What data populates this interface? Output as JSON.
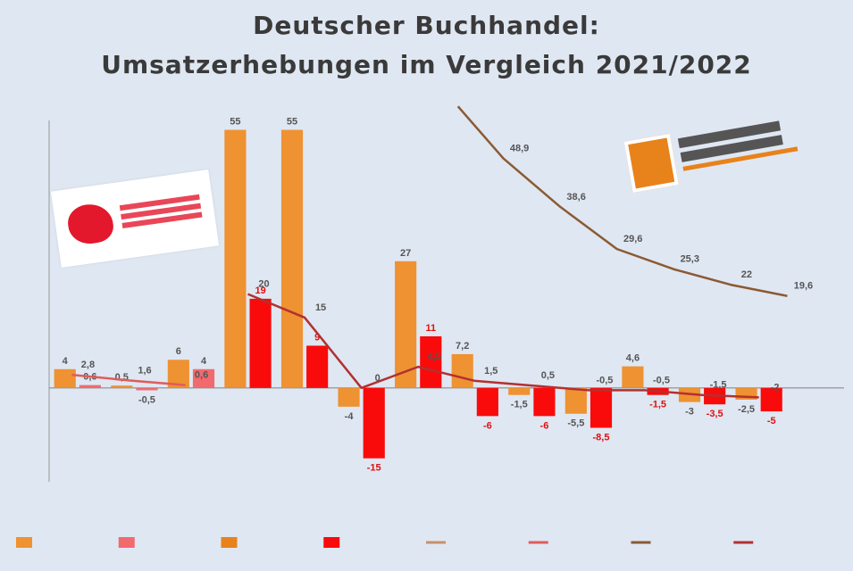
{
  "header": {
    "title_line1": "Deutscher Buchhandel:",
    "title_line2": "Umsatzerhebungen im Vergleich 2021/2022",
    "subtitle": ""
  },
  "source_note": "",
  "logos": {
    "left": "logo-left",
    "right": "logo-right"
  },
  "chart_data": {
    "type": "bar",
    "title": "Deutscher Buchhandel: Umsatzerhebungen im Vergleich 2021/2022",
    "xlabel": "",
    "ylabel": "",
    "ylim": [
      -20,
      57
    ],
    "y_ticks": [
      -20,
      -10,
      -5,
      0,
      5,
      10,
      15,
      20,
      25,
      30,
      35,
      40,
      45,
      50,
      55
    ],
    "y_tick_labels": [
      "",
      "",
      "",
      "",
      "",
      "",
      "",
      "",
      "",
      "",
      "",
      "",
      "",
      "",
      ""
    ],
    "grid": false,
    "legend_position": "bottom",
    "categories": [
      "",
      "",
      "",
      "",
      "",
      "",
      "",
      "",
      "",
      "",
      "",
      "",
      "",
      ""
    ],
    "bar_series": [
      {
        "name": "",
        "color": "#ee9232",
        "values": [
          4.0,
          0.5,
          6.0,
          55.0,
          55.0,
          -4.0,
          27.0,
          7.2,
          -1.5,
          -5.5,
          4.6,
          -3.0,
          -2.5
        ]
      },
      {
        "name": "",
        "color": "#f26a6e",
        "values": [
          0.6,
          -0.5,
          4.0
        ]
      },
      {
        "name": "",
        "color": "#f90b0b",
        "values": [
          19.0,
          9.0,
          -15.0,
          11.0,
          -6.0,
          -6.0,
          -8.5,
          -1.5,
          -3.5,
          -5.0
        ],
        "offset_start": 3
      }
    ],
    "line_series": [
      {
        "name": "",
        "color": "#8b5a33",
        "x": [
          7.2,
          8,
          9,
          10,
          11,
          12,
          13
        ],
        "values": [
          62.0,
          48.9,
          38.6,
          29.6,
          25.3,
          22.0,
          19.6
        ]
      },
      {
        "name": "",
        "color": "#b33030",
        "x": [
          3.5,
          4.5,
          5.5,
          6.5,
          7.5,
          8.5,
          9.5,
          10.5,
          11.5,
          12.5
        ],
        "values": [
          20.0,
          15.0,
          0.0,
          4.5,
          1.5,
          0.5,
          -0.5,
          -0.5,
          -1.5,
          -2.0
        ]
      },
      {
        "name": "",
        "color": "#e15b5b",
        "x": [
          0.4,
          1.4,
          2.4
        ],
        "values": [
          2.8,
          1.6,
          0.6
        ]
      }
    ]
  }
}
